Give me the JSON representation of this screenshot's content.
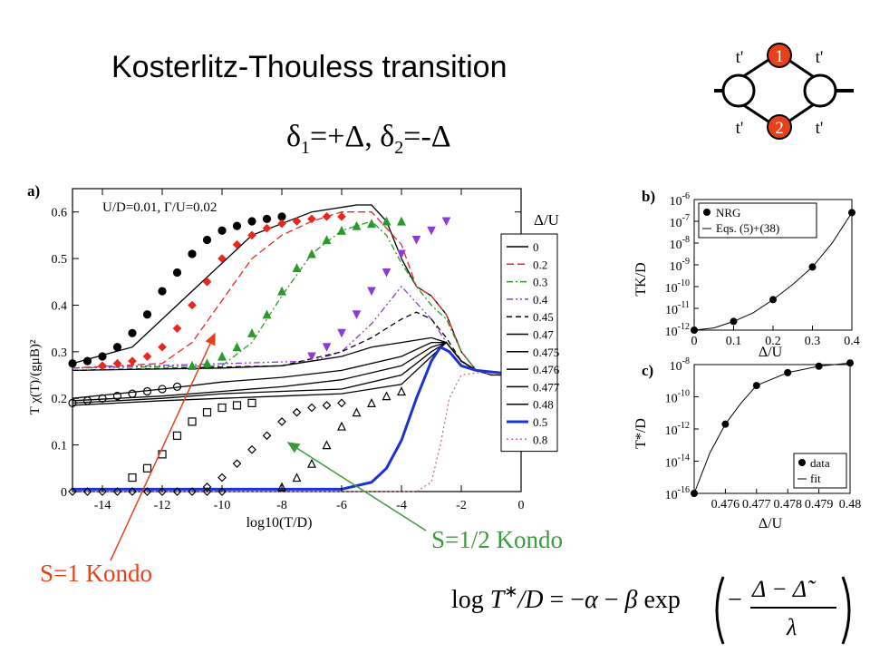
{
  "title": "Kosterlitz-Thouless transition",
  "subtitle": {
    "d1": "δ",
    "s1": "1",
    "eq1": "=+Δ, ",
    "d2": "δ",
    "s2": "2",
    "eq2": "=-Δ"
  },
  "dot_diagram": {
    "top_label": "1",
    "bottom_label": "2",
    "hop": "t'"
  },
  "panel_a": {
    "tag": "a)",
    "params": "U/D=0.01, Γ/U=0.02",
    "xlabel": "log10(T/D)",
    "ylabel": "T χ(T)/(gμB)²",
    "legend_title": "Δ/U",
    "legend": [
      "0",
      "0.2",
      "0.3",
      "0.4",
      "0.45",
      "0.47",
      "0.475",
      "0.476",
      "0.477",
      "0.48",
      "0.5",
      "0.8"
    ]
  },
  "panel_b": {
    "tag": "b)",
    "ylabel": "TK/D",
    "xlabel": "Δ/U",
    "legend": [
      "NRG",
      "Eqs. (5)+(38)"
    ]
  },
  "panel_c": {
    "tag": "c)",
    "ylabel": "T*/D",
    "xlabel": "Δ/U",
    "legend": [
      "data",
      "fit"
    ]
  },
  "annotations": {
    "s1": "S=1 Kondo",
    "s12": "S=1/2 Kondo"
  },
  "formula": "log T*/D = −α − β exp(−(Δ − Δ̃)/λ)",
  "chart_data": [
    {
      "type": "line",
      "title": "",
      "xlabel": "log10(T/D)",
      "ylabel": "T χ(T)/(gμB)²",
      "xlim": [
        -15,
        0
      ],
      "ylim": [
        0,
        0.65
      ],
      "xticks": [
        -14,
        -12,
        -10,
        -8,
        -6,
        -4,
        -2,
        0
      ],
      "yticks": [
        0,
        0.1,
        0.2,
        0.3,
        0.4,
        0.5,
        0.6
      ],
      "legend_title": "Δ/U",
      "series": [
        {
          "name": "0",
          "color": "#000000",
          "dash": "",
          "x": [
            -15,
            -13,
            -11,
            -9,
            -7,
            -5.5,
            -5,
            -4.5,
            -4,
            -3.5,
            -3,
            -2.5,
            -2,
            -1.5,
            -1,
            0
          ],
          "y": [
            0.275,
            0.31,
            0.43,
            0.55,
            0.6,
            0.615,
            0.615,
            0.58,
            0.5,
            0.44,
            0.42,
            0.38,
            0.3,
            0.26,
            0.25,
            0.25
          ]
        },
        {
          "name": "0.2",
          "color": "#e8271f",
          "dash": "8,4",
          "x": [
            -15,
            -12,
            -11,
            -10,
            -9,
            -8,
            -7,
            -6,
            -5,
            -4,
            -3.5,
            -3,
            -2.5,
            -2,
            -1.5,
            0
          ],
          "y": [
            0.265,
            0.275,
            0.32,
            0.41,
            0.5,
            0.55,
            0.58,
            0.6,
            0.6,
            0.53,
            0.44,
            0.42,
            0.38,
            0.3,
            0.26,
            0.25
          ]
        },
        {
          "name": "0.3",
          "color": "#2a9b2a",
          "dash": "7,3,2,3",
          "x": [
            -15,
            -10,
            -9,
            -8,
            -7,
            -6,
            -5,
            -4.5,
            -4,
            -3.5,
            -3,
            -2.5,
            -2,
            -1.5,
            0
          ],
          "y": [
            0.265,
            0.27,
            0.32,
            0.42,
            0.51,
            0.56,
            0.58,
            0.55,
            0.49,
            0.44,
            0.4,
            0.37,
            0.3,
            0.26,
            0.25
          ]
        },
        {
          "name": "0.4",
          "color": "#8a3bd6",
          "dash": "7,3,2,3,2,3",
          "x": [
            -15,
            -7,
            -6,
            -5,
            -4,
            -3,
            -2.5,
            -2,
            -1.5,
            0
          ],
          "y": [
            0.265,
            0.28,
            0.3,
            0.36,
            0.44,
            0.37,
            0.32,
            0.28,
            0.26,
            0.25
          ]
        },
        {
          "name": "0.45",
          "color": "#000000",
          "dash": "6,4",
          "x": [
            -15,
            -8,
            -6,
            -5,
            -4,
            -3.5,
            -3,
            -2.5,
            -2,
            -1.5,
            0
          ],
          "y": [
            0.26,
            0.27,
            0.3,
            0.33,
            0.37,
            0.385,
            0.37,
            0.33,
            0.28,
            0.26,
            0.25
          ]
        },
        {
          "name": "0.47",
          "color": "#000000",
          "dash": "",
          "x": [
            -15,
            -10,
            -8,
            -6,
            -5,
            -4,
            -3,
            -2.5,
            -2,
            -1.5,
            0
          ],
          "y": [
            0.26,
            0.265,
            0.27,
            0.29,
            0.31,
            0.32,
            0.33,
            0.32,
            0.28,
            0.26,
            0.25
          ]
        },
        {
          "name": "0.475",
          "color": "#000000",
          "dash": "",
          "x": [
            -15,
            -12,
            -10,
            -8,
            -6,
            -4,
            -3,
            -2.5,
            -2,
            -1.5,
            0
          ],
          "y": [
            0.2,
            0.22,
            0.235,
            0.245,
            0.26,
            0.29,
            0.32,
            0.32,
            0.28,
            0.26,
            0.25
          ]
        },
        {
          "name": "0.476",
          "color": "#000000",
          "dash": "",
          "x": [
            -15,
            -12,
            -10,
            -8,
            -6,
            -4,
            -3,
            -2.5,
            -2,
            -1.5,
            0
          ],
          "y": [
            0.195,
            0.205,
            0.215,
            0.225,
            0.24,
            0.27,
            0.31,
            0.32,
            0.28,
            0.26,
            0.25
          ]
        },
        {
          "name": "0.477",
          "color": "#000000",
          "dash": "",
          "x": [
            -15,
            -12,
            -10,
            -8,
            -6,
            -4,
            -3,
            -2.5,
            -2,
            -1.5,
            0
          ],
          "y": [
            0.19,
            0.2,
            0.21,
            0.215,
            0.22,
            0.25,
            0.3,
            0.32,
            0.28,
            0.26,
            0.25
          ]
        },
        {
          "name": "0.48",
          "color": "#000000",
          "dash": "",
          "x": [
            -15,
            -12,
            -10,
            -8,
            -6,
            -4,
            -3,
            -2.5,
            -2,
            -1.5,
            0
          ],
          "y": [
            0.185,
            0.195,
            0.2,
            0.205,
            0.21,
            0.23,
            0.29,
            0.32,
            0.28,
            0.26,
            0.25
          ]
        },
        {
          "name": "0.5",
          "color": "#1a32d6",
          "dash": "",
          "x": [
            -15,
            -6,
            -5,
            -4.5,
            -4,
            -3.5,
            -3,
            -2.7,
            -2.4,
            -2,
            -1.5,
            0
          ],
          "y": [
            0.005,
            0.005,
            0.02,
            0.05,
            0.11,
            0.2,
            0.28,
            0.31,
            0.3,
            0.27,
            0.26,
            0.25
          ]
        },
        {
          "name": "0.8",
          "color": "#c07090",
          "dash": "2,3",
          "x": [
            -15,
            -3.5,
            -3,
            -2.7,
            -2.4,
            -2,
            -1.5,
            0
          ],
          "y": [
            0,
            0,
            0.02,
            0.1,
            0.2,
            0.25,
            0.255,
            0.25
          ]
        }
      ],
      "markers": [
        {
          "series": "0",
          "shape": "circle",
          "fill": "#000000",
          "x": [
            -15,
            -14.5,
            -14,
            -13.5,
            -13,
            -12.5,
            -12,
            -11.5,
            -11,
            -10.5,
            -10,
            -9.5,
            -9,
            -8.5,
            -8
          ],
          "y": [
            0.275,
            0.28,
            0.29,
            0.31,
            0.34,
            0.38,
            0.43,
            0.47,
            0.51,
            0.54,
            0.56,
            0.57,
            0.58,
            0.585,
            0.59
          ]
        },
        {
          "series": "0.2",
          "shape": "diamond",
          "fill": "#e8271f",
          "x": [
            -14,
            -13.5,
            -13,
            -12.5,
            -12,
            -11.5,
            -11,
            -10.5,
            -10,
            -9.5,
            -9,
            -8.5,
            -8,
            -7.5,
            -7,
            -6.5,
            -6
          ],
          "y": [
            0.27,
            0.275,
            0.28,
            0.29,
            0.31,
            0.35,
            0.4,
            0.45,
            0.5,
            0.53,
            0.55,
            0.565,
            0.575,
            0.58,
            0.585,
            0.59,
            0.59
          ]
        },
        {
          "series": "0.3",
          "shape": "triangle",
          "fill": "#2a9b2a",
          "x": [
            -11,
            -10.5,
            -10,
            -9.5,
            -9,
            -8.5,
            -8,
            -7.5,
            -7,
            -6.5,
            -6,
            -5.5,
            -5,
            -4.5,
            -4
          ],
          "y": [
            0.27,
            0.275,
            0.29,
            0.31,
            0.34,
            0.38,
            0.43,
            0.48,
            0.51,
            0.54,
            0.56,
            0.57,
            0.575,
            0.58,
            0.58
          ]
        },
        {
          "series": "0.4",
          "shape": "tri-down",
          "fill": "#8a3bd6",
          "x": [
            -7,
            -6.5,
            -6,
            -5.5,
            -5,
            -4.5,
            -4,
            -3.5,
            -3,
            -2.5
          ],
          "y": [
            0.29,
            0.31,
            0.34,
            0.38,
            0.43,
            0.47,
            0.51,
            0.54,
            0.56,
            0.58
          ]
        },
        {
          "series": "0.475",
          "shape": "circle-open",
          "fill": "none",
          "x": [
            -15,
            -14.5,
            -14,
            -13.5,
            -13,
            -12.5,
            -12,
            -11.5
          ],
          "y": [
            0.19,
            0.195,
            0.2,
            0.205,
            0.21,
            0.215,
            0.22,
            0.225
          ]
        },
        {
          "series": "0.476",
          "shape": "square-open",
          "fill": "none",
          "x": [
            -13,
            -12.5,
            -12,
            -11.5,
            -11,
            -10.5,
            -10,
            -9.5,
            -9
          ],
          "y": [
            0.03,
            0.05,
            0.08,
            0.12,
            0.15,
            0.17,
            0.18,
            0.185,
            0.19
          ]
        },
        {
          "series": "0.477",
          "shape": "diamond-open",
          "fill": "none",
          "x": [
            -10.5,
            -10,
            -9.5,
            -9,
            -8.5,
            -8,
            -7.5,
            -7,
            -6.5,
            -6
          ],
          "y": [
            0.01,
            0.03,
            0.06,
            0.09,
            0.12,
            0.15,
            0.17,
            0.18,
            0.185,
            0.19
          ]
        },
        {
          "series": "0.48",
          "shape": "triangle-open",
          "fill": "none",
          "x": [
            -8,
            -7.5,
            -7,
            -6.5,
            -6,
            -5.5,
            -5,
            -4.5,
            -4
          ],
          "y": [
            0.01,
            0.03,
            0.06,
            0.1,
            0.14,
            0.17,
            0.19,
            0.205,
            0.215
          ]
        },
        {
          "series": "base",
          "shape": "diamond-open",
          "fill": "none",
          "x": [
            -15,
            -14.5,
            -14,
            -13.5,
            -13,
            -12.5,
            -12,
            -11.5,
            -11,
            -10.5,
            -10
          ],
          "y": [
            0,
            0,
            0,
            0,
            0,
            0,
            0,
            0,
            0,
            0,
            0
          ]
        }
      ]
    },
    {
      "type": "scatter",
      "title": "",
      "xlabel": "Δ/U",
      "ylabel": "TK/D",
      "log_y": true,
      "xlim": [
        0,
        0.4
      ],
      "ylim": [
        -12,
        -6
      ],
      "xticks": [
        0,
        0.1,
        0.2,
        0.3,
        0.4
      ],
      "series": [
        {
          "name": "NRG",
          "x": [
            0,
            0.1,
            0.2,
            0.3,
            0.4
          ],
          "y": [
            -12,
            -11.6,
            -10.6,
            -9.1,
            -6.6
          ]
        },
        {
          "name": "Eqs. (5)+(38)",
          "x": [
            0,
            0.05,
            0.1,
            0.15,
            0.2,
            0.25,
            0.3,
            0.35,
            0.4
          ],
          "y": [
            -12,
            -11.9,
            -11.6,
            -11.2,
            -10.6,
            -9.9,
            -9.1,
            -8.0,
            -6.6
          ]
        }
      ]
    },
    {
      "type": "scatter",
      "title": "",
      "xlabel": "Δ/U",
      "ylabel": "T*/D",
      "log_y": true,
      "xlim": [
        0.475,
        0.48
      ],
      "ylim": [
        -16,
        -8
      ],
      "xticks": [
        0.476,
        0.477,
        0.478,
        0.479,
        0.48
      ],
      "series": [
        {
          "name": "data",
          "x": [
            0.475,
            0.476,
            0.477,
            0.478,
            0.479,
            0.48
          ],
          "y": [
            -16,
            -11.7,
            -9.3,
            -8.5,
            -8.1,
            -7.9
          ]
        },
        {
          "name": "fit",
          "x": [
            0.475,
            0.4755,
            0.476,
            0.4765,
            0.477,
            0.4775,
            0.478,
            0.479,
            0.48
          ],
          "y": [
            -16,
            -13.5,
            -11.7,
            -10.4,
            -9.3,
            -8.9,
            -8.5,
            -8.1,
            -7.9
          ]
        }
      ]
    }
  ]
}
